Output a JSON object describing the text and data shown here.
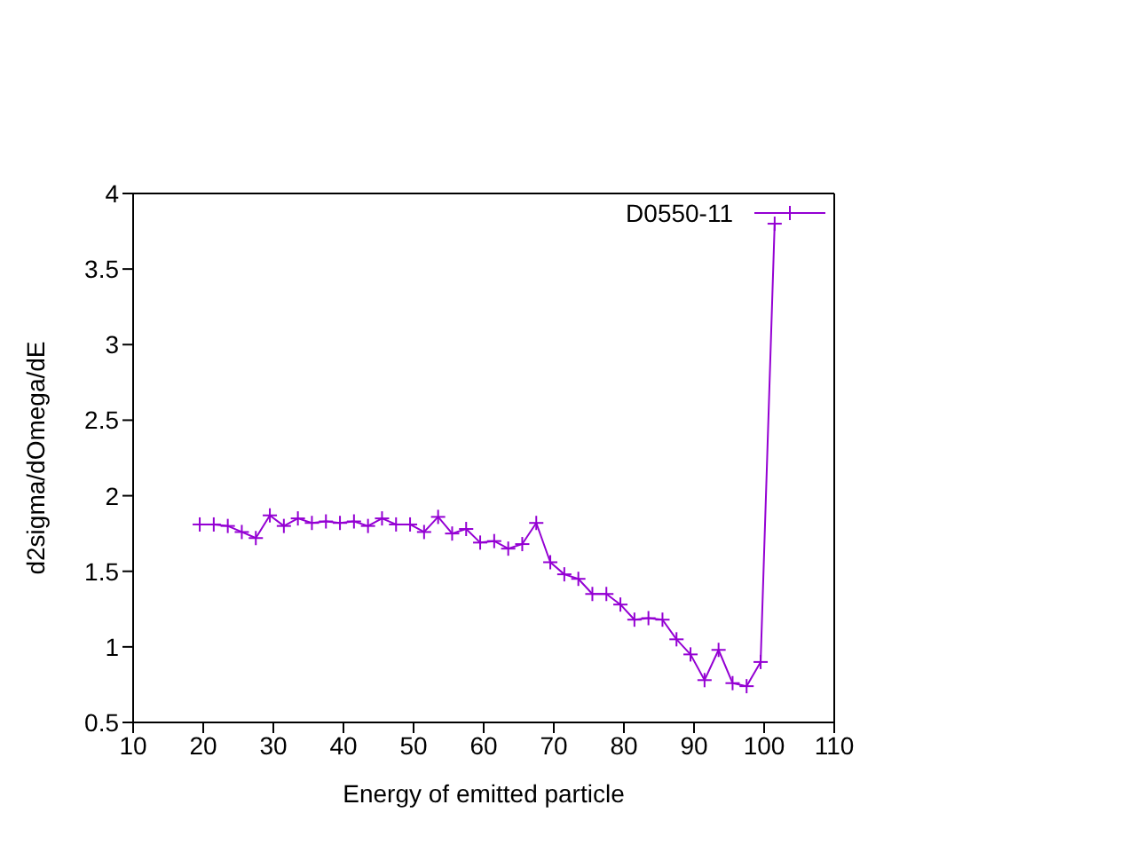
{
  "chart_data": {
    "type": "line",
    "xlabel": "Energy of emitted particle",
    "ylabel": "d2sigma/dOmega/dE",
    "x": [
      19.5,
      21.5,
      23.5,
      25.5,
      27.5,
      29.5,
      31.5,
      33.5,
      35.5,
      37.5,
      39.5,
      41.5,
      43.5,
      45.5,
      47.5,
      49.5,
      51.5,
      53.5,
      55.5,
      57.5,
      59.5,
      61.5,
      63.5,
      65.5,
      67.5,
      69.5,
      71.5,
      73.5,
      75.5,
      77.5,
      79.5,
      81.5,
      83.5,
      85.5,
      87.5,
      89.5,
      91.5,
      93.5,
      95.5,
      97.5,
      99.5,
      101.5
    ],
    "series": [
      {
        "name": "D0550-11",
        "color": "#9400d3",
        "values": [
          1.81,
          1.81,
          1.8,
          1.76,
          1.72,
          1.87,
          1.8,
          1.85,
          1.82,
          1.83,
          1.82,
          1.83,
          1.8,
          1.85,
          1.81,
          1.81,
          1.76,
          1.86,
          1.75,
          1.78,
          1.69,
          1.7,
          1.65,
          1.68,
          1.82,
          1.56,
          1.48,
          1.45,
          1.35,
          1.35,
          1.28,
          1.18,
          1.19,
          1.18,
          1.05,
          0.95,
          0.78,
          0.98,
          0.76,
          0.74,
          0.9,
          3.8
        ]
      }
    ],
    "xlim": [
      10,
      110
    ],
    "xticks": [
      10,
      20,
      30,
      40,
      50,
      60,
      70,
      80,
      90,
      100,
      110
    ],
    "ylim": [
      0.5,
      4
    ],
    "yticks": [
      0.5,
      1,
      1.5,
      2,
      2.5,
      3,
      3.5,
      4
    ],
    "marker": "cross",
    "line_style": "solid",
    "legend": "top right",
    "grid": false
  }
}
